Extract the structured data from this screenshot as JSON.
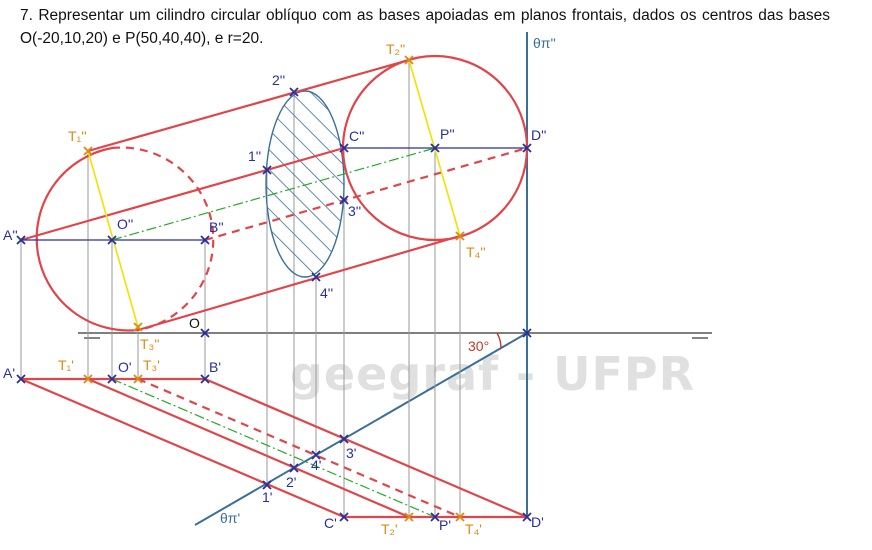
{
  "problem": {
    "text": "7. Representar um cilindro circular oblíquo com as bases apoiadas em planos frontais, dados os centros das bases O(-20,10,20) e P(50,40,40), e r=20."
  },
  "watermark": "geegraf - UFPR",
  "labels": {
    "theta_pi_v": "θπ''",
    "theta_pi_h": "θπ'",
    "angle": "30°",
    "origin": "O",
    "A2": "A''",
    "B2": "B''",
    "O2": "O''",
    "C2": "C''",
    "D2": "D''",
    "P2": "P''",
    "T1_2": "T₁''",
    "T2_2": "T₂''",
    "T3_2": "T₃''",
    "T4_2": "T₄''",
    "p1_2": "1''",
    "p2_2": "2''",
    "p3_2": "3''",
    "p4_2": "4''",
    "A1": "A'",
    "B1": "B'",
    "O1": "O'",
    "C1": "C'",
    "D1": "D'",
    "P1": "P'",
    "T1_1": "T₁'",
    "T2_1": "T₂'",
    "T3_1": "T₃'",
    "T4_1": "T₄'",
    "p1_1": "1'",
    "p2_1": "2'",
    "p3_1": "3'",
    "p4_1": "4'"
  },
  "colors": {
    "contour": "#e0454a",
    "projection_line": "#2a2f9c",
    "tangent_line": "#f2e200",
    "axis_line": "#28a828",
    "plane": "#3a6f9a",
    "hatch": "#3a6f9a",
    "tangent_label": "#e08a10"
  }
}
